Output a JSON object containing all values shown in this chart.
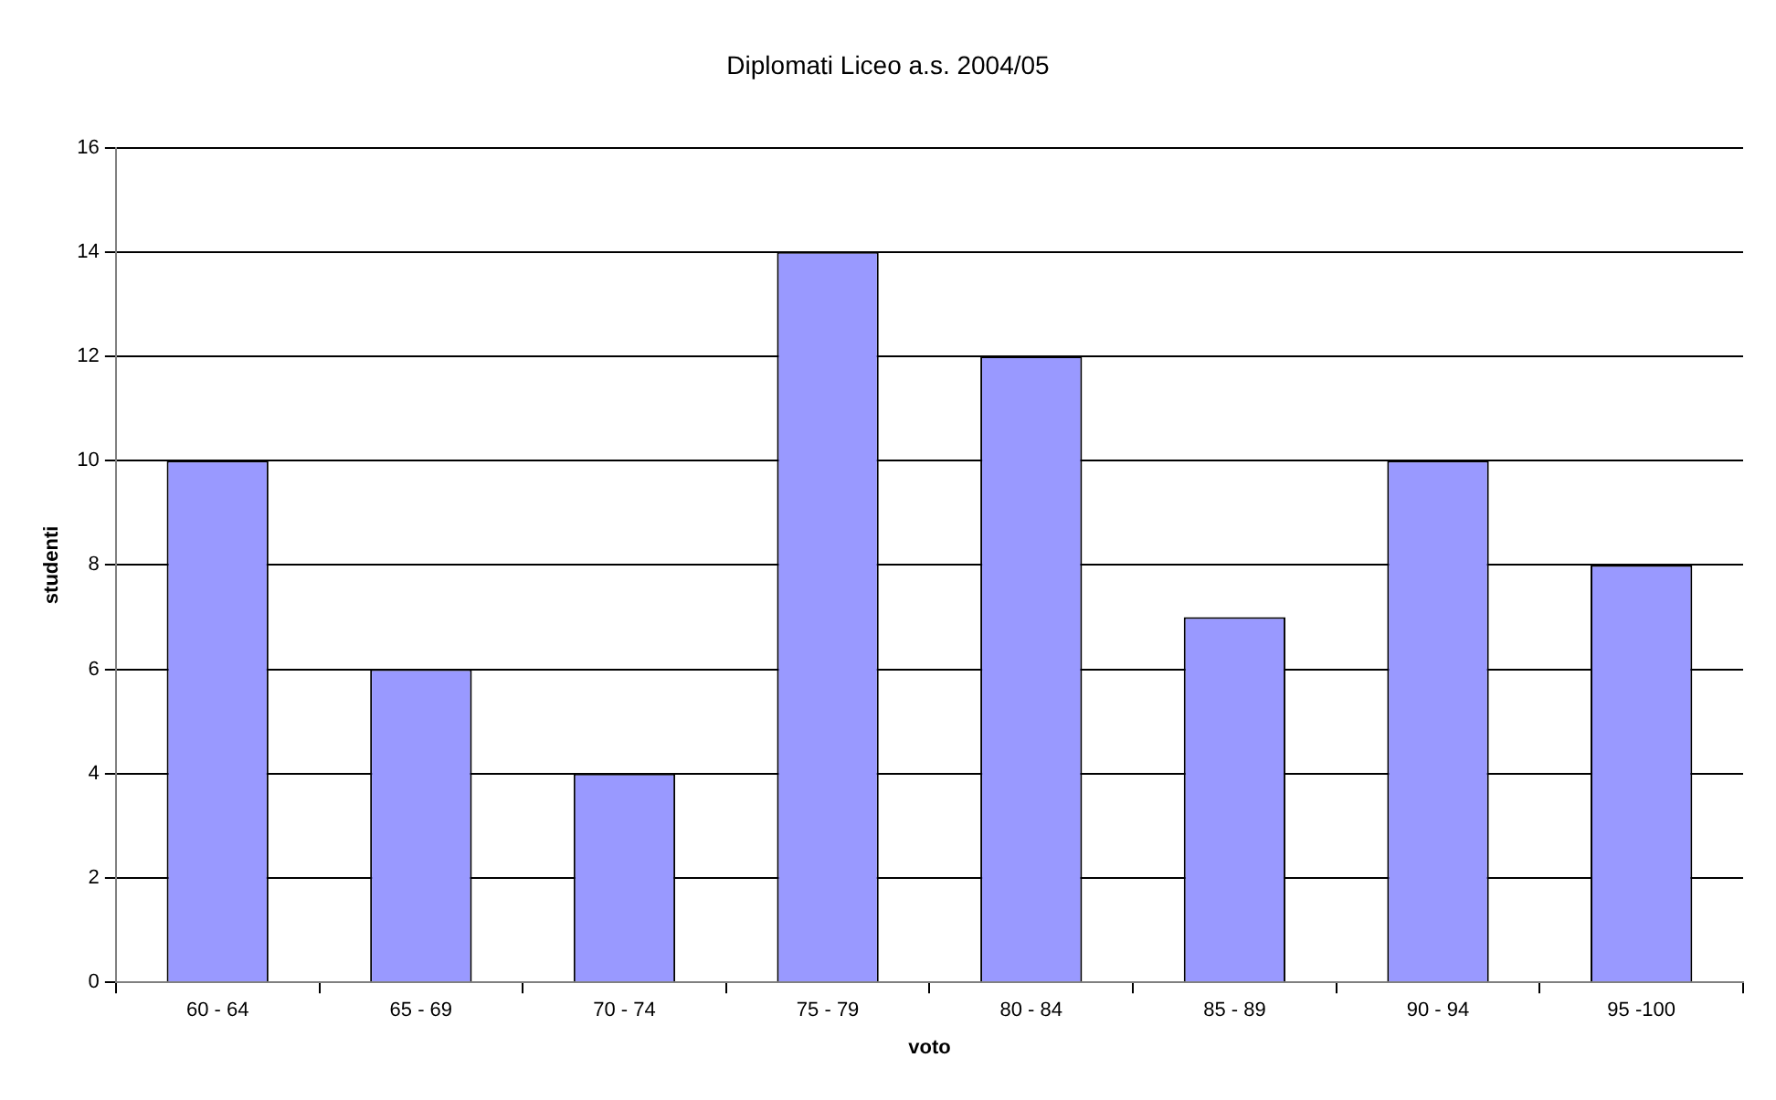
{
  "chart_data": {
    "type": "bar",
    "title": "Diplomati Liceo a.s. 2004/05",
    "xlabel": "voto",
    "ylabel": "studenti",
    "categories": [
      "60 - 64",
      "65 - 69",
      "70 - 74",
      "75 - 79",
      "80 - 84",
      "85 - 89",
      "90 - 94",
      "95 -100"
    ],
    "values": [
      10,
      6,
      4,
      14,
      12,
      7,
      10,
      8
    ],
    "color": "#9999ff",
    "ylim": [
      0,
      16
    ],
    "yticks": [
      0,
      2,
      4,
      6,
      8,
      10,
      12,
      14,
      16
    ],
    "grid": "y",
    "legend": false
  }
}
